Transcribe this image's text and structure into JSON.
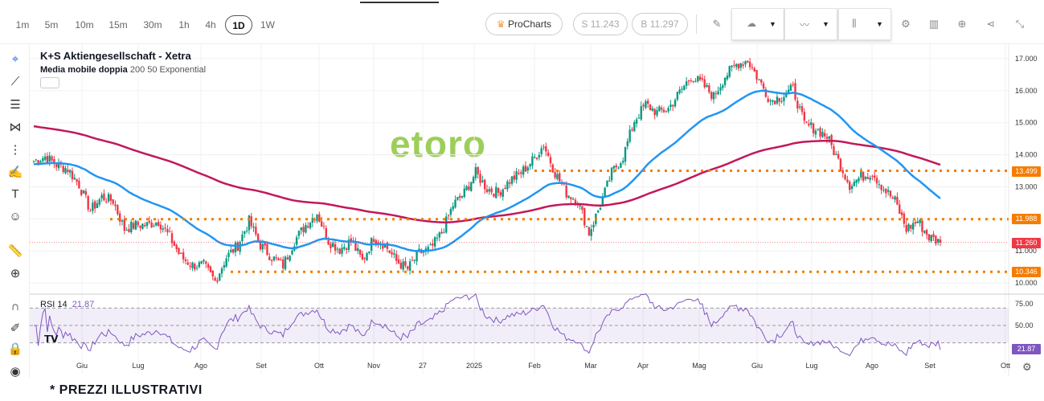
{
  "toolbar": {
    "timeframes": [
      "1m",
      "5m",
      "10m",
      "15m",
      "30m",
      "1h",
      "4h",
      "1D",
      "1W"
    ],
    "active_timeframe": "1D",
    "procharts_label": "ProCharts",
    "sell_label": "S 11.243",
    "buy_label": "B 11.297"
  },
  "legend": {
    "title": "K+S Aktiengesellschaft - Xetra",
    "indicator_name": "Media mobile doppia",
    "indicator_params": "200 50 Exponential",
    "rsi_name": "RSI 14",
    "rsi_value": "21.87"
  },
  "watermark": "etoro",
  "footer": "* PREZZI ILLUSTRATIVI",
  "colors": {
    "up": "#089981",
    "down": "#f23645",
    "ema200": "#c2185b",
    "ema50": "#2196f3",
    "levels": "#f57c00",
    "rsi": "#7e57c2",
    "accent": "#2962ff"
  },
  "chart_data": {
    "type": "candlestick",
    "price_axis": {
      "ticks": [
        "17.000",
        "16.000",
        "15.000",
        "14.000",
        "13.000",
        "11.000",
        "10.000"
      ],
      "range": [
        9.8,
        17.2
      ]
    },
    "rsi_axis": {
      "ticks": [
        "75.00",
        "50.00"
      ],
      "band": [
        30,
        70
      ]
    },
    "time_axis": [
      "Giu",
      "Lug",
      "Ago",
      "Set",
      "Ott",
      "Nov",
      "27",
      "2025",
      "Feb",
      "Mar",
      "Apr",
      "Mag",
      "Giu",
      "Lug",
      "Ago",
      "Set",
      "Ott"
    ],
    "closes_approx": [
      13.81,
      13.94,
      13.69,
      13.56,
      13.06,
      12.26,
      12.68,
      12.56,
      11.68,
      11.81,
      11.81,
      11.93,
      11.43,
      10.8,
      10.55,
      10.55,
      10.05,
      10.8,
      11.18,
      11.93,
      11.18,
      10.8,
      10.55,
      11.31,
      11.81,
      12.18,
      11.31,
      11.05,
      11.31,
      10.68,
      11.43,
      11.18,
      10.68,
      10.43,
      10.93,
      11.05,
      11.56,
      12.43,
      12.81,
      13.44,
      12.94,
      12.81,
      13.19,
      13.44,
      13.81,
      14.31,
      13.44,
      12.81,
      12.56,
      11.56,
      12.43,
      13.44,
      13.94,
      15.07,
      15.57,
      15.32,
      15.44,
      15.95,
      16.45,
      16.2,
      15.82,
      16.45,
      16.82,
      16.95,
      16.32,
      15.7,
      15.82,
      16.07,
      14.94,
      14.82,
      14.57,
      13.81,
      13.06,
      13.31,
      13.44,
      12.94,
      12.56,
      11.68,
      11.93,
      11.43,
      11.26
    ],
    "ema200_start": 14.9,
    "ema50_start": 13.7,
    "levels": [
      {
        "value": 13.499,
        "label": "13.499"
      },
      {
        "value": 11.988,
        "label": "11.988"
      },
      {
        "value": 10.346,
        "label": "10.346"
      }
    ],
    "last_price": {
      "value": 11.26,
      "label": "11.260"
    },
    "rsi_last": "21.87"
  }
}
